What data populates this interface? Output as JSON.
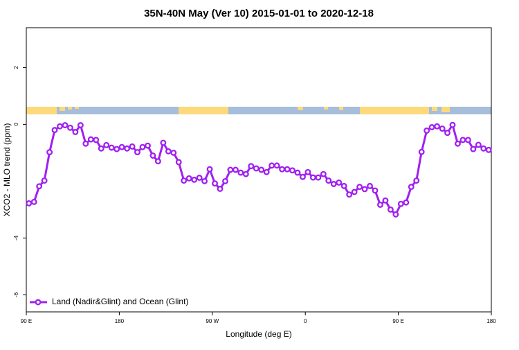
{
  "chart_data": {
    "type": "line",
    "title": "35N-40N May (Ver 10)   2015-01-01 to 2020-12-18",
    "x_label": "Longitude (deg E)",
    "y_label": "XCO2 - MLO trend (ppm)",
    "xlim": [
      90,
      540
    ],
    "ylim": [
      -6.6,
      3.4
    ],
    "xticks": [
      {
        "value": 90,
        "label": "90 E"
      },
      180,
      {
        "value": 270,
        "label": "90 W"
      },
      {
        "value": 360,
        "label": "0"
      },
      {
        "value": 450,
        "label": "90 E"
      },
      {
        "value": 540,
        "label": "180"
      }
    ],
    "yticks": [
      -6,
      -4,
      0,
      2
    ],
    "legend": "bottomleft",
    "x": [
      92.5,
      97.5,
      102.5,
      107.5,
      112.5,
      117.5,
      122.5,
      127.5,
      132.5,
      137.5,
      142.5,
      147.5,
      152.5,
      157.5,
      162.5,
      167.5,
      172.5,
      177.5,
      182.5,
      187.5,
      192.5,
      197.5,
      202.5,
      207.5,
      212.5,
      217.5,
      222.5,
      227.5,
      232.5,
      237.5,
      242.5,
      247.5,
      252.5,
      257.5,
      262.5,
      267.5,
      272.5,
      277.5,
      282.5,
      287.5,
      292.5,
      297.5,
      302.5,
      307.5,
      312.5,
      317.5,
      322.5,
      327.5,
      332.5,
      337.5,
      342.5,
      347.5,
      352.5,
      357.5,
      362.5,
      367.5,
      372.5,
      377.5,
      382.5,
      387.5,
      392.5,
      397.5,
      402.5,
      407.5,
      412.5,
      417.5,
      422.5,
      427.5,
      432.5,
      437.5,
      442.5,
      447.5,
      452.5,
      457.5,
      462.5,
      467.5,
      472.5,
      477.5,
      482.5,
      487.5,
      492.5,
      497.5,
      502.5,
      507.5,
      512.5,
      517.5,
      522.5,
      527.5,
      532.5,
      537.5
    ],
    "series": [
      {
        "name": "Land (Nadir&Glint) and Ocean (Glint)",
        "color": "#a020f0",
        "values": [
          -2.78,
          -2.73,
          -2.18,
          -1.98,
          -0.98,
          -0.2,
          -0.07,
          -0.03,
          -0.12,
          -0.27,
          -0.03,
          -0.68,
          -0.53,
          -0.55,
          -0.85,
          -0.73,
          -0.82,
          -0.87,
          -0.8,
          -0.85,
          -0.78,
          -0.98,
          -0.8,
          -0.75,
          -1.1,
          -1.3,
          -0.65,
          -0.95,
          -1.0,
          -1.33,
          -1.98,
          -1.9,
          -1.95,
          -1.88,
          -2.0,
          -1.58,
          -2.08,
          -2.27,
          -2.0,
          -1.6,
          -1.6,
          -1.7,
          -1.75,
          -1.47,
          -1.55,
          -1.6,
          -1.68,
          -1.45,
          -1.45,
          -1.58,
          -1.58,
          -1.62,
          -1.7,
          -1.85,
          -1.68,
          -1.87,
          -1.87,
          -1.75,
          -1.98,
          -2.1,
          -2.05,
          -2.17,
          -2.47,
          -2.38,
          -2.2,
          -2.28,
          -2.17,
          -2.33,
          -2.83,
          -2.68,
          -3.0,
          -3.17,
          -2.8,
          -2.75,
          -2.2,
          -1.98,
          -0.97,
          -0.22,
          -0.1,
          -0.07,
          -0.15,
          -0.3,
          -0.02,
          -0.68,
          -0.55,
          -0.55,
          -0.87,
          -0.72,
          -0.85,
          -0.9
        ]
      }
    ]
  }
}
